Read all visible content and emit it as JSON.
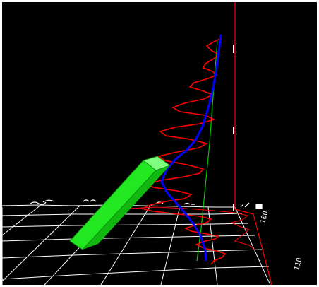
{
  "scene": {
    "background": "#000000",
    "frame_color": "#ffffff",
    "colors": {
      "grid": "#ffffff",
      "signal": "#ff0000",
      "axis": "#ff0000",
      "trajectory": "#0000ff",
      "reference_line": "#00cc00",
      "probe": "#22ee22"
    },
    "axis_labels": {
      "z1": "100",
      "z2": "110"
    },
    "icons": [
      "probe-box",
      "trajectory-line",
      "floor-grid"
    ]
  }
}
